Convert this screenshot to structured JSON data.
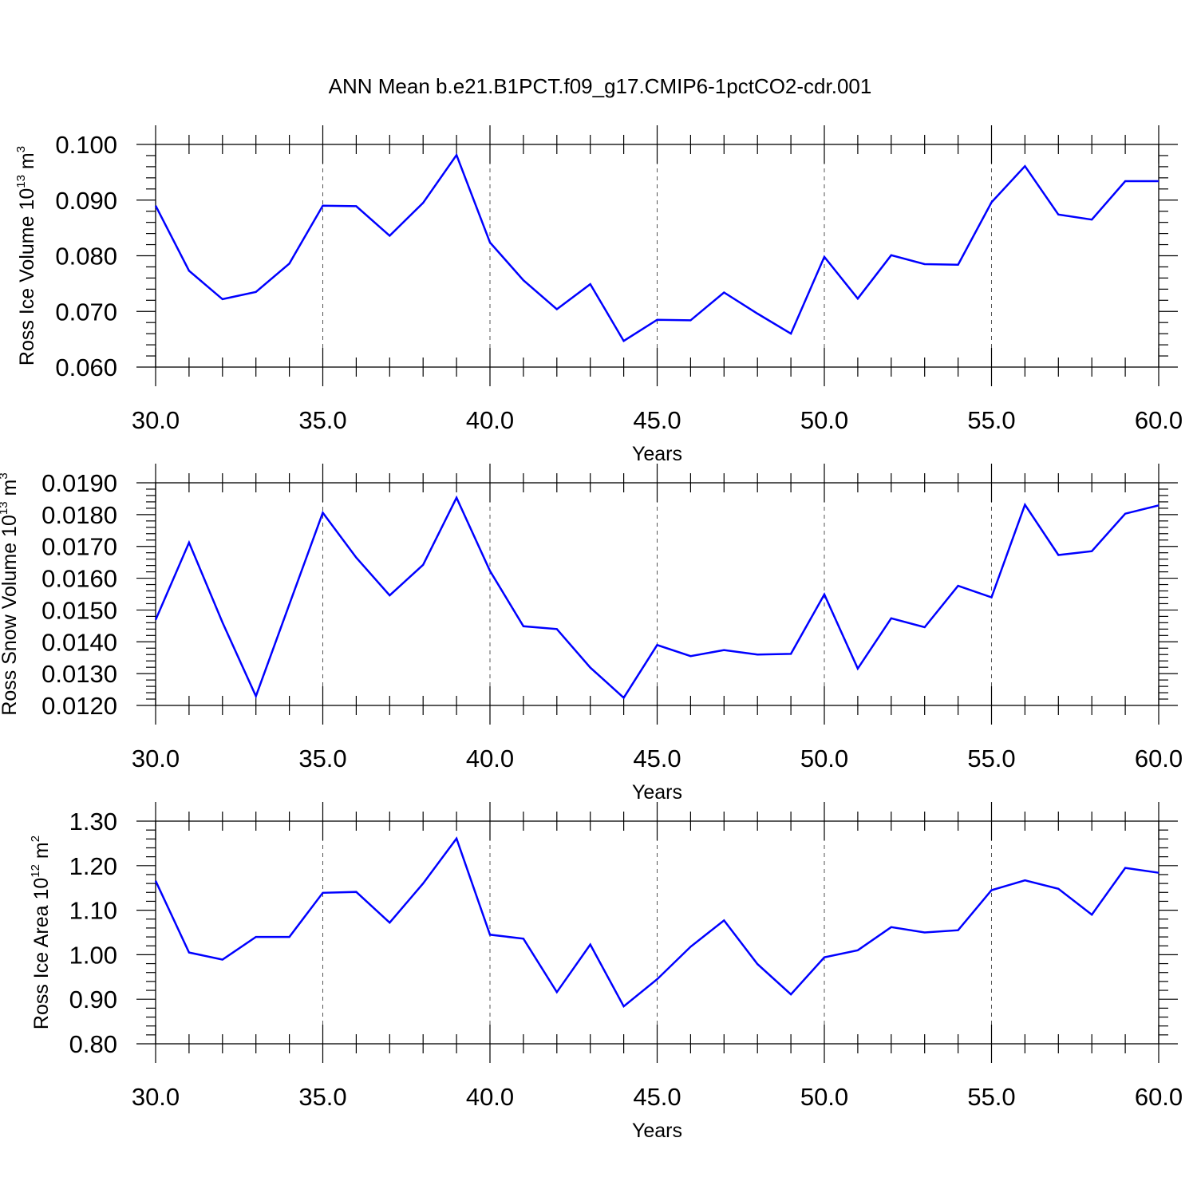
{
  "title": "ANN Mean b.e21.B1PCT.f09_g17.CMIP6-1pctCO2-cdr.001",
  "colors": {
    "line": "#0000ff",
    "axis": "#000000",
    "grid": "#555555"
  },
  "chart_data": [
    {
      "type": "line",
      "ylabel": {
        "prefix": "Ross Ice Volume 10",
        "exp": "13",
        "unit": " m",
        "unit_exp": "3"
      },
      "xlabel": "Years",
      "xlim": [
        30,
        60
      ],
      "ylim": [
        0.06,
        0.1
      ],
      "xticks": [
        "30.0",
        "35.0",
        "40.0",
        "45.0",
        "50.0",
        "55.0",
        "60.0"
      ],
      "yticks": [
        "0.060",
        "0.070",
        "0.080",
        "0.090",
        "0.100"
      ],
      "grid": "vertical dashed",
      "series": [
        {
          "x": [
            30,
            31,
            32,
            33,
            34,
            35,
            36,
            37,
            38,
            39,
            40,
            41,
            42,
            43,
            44,
            45,
            46,
            47,
            48,
            49,
            50,
            51,
            52,
            53,
            54,
            55,
            56,
            57,
            58,
            59,
            60
          ],
          "values": [
            0.089,
            0.0773,
            0.0722,
            0.0735,
            0.0786,
            0.089,
            0.0889,
            0.0836,
            0.0895,
            0.0981,
            0.0824,
            0.0756,
            0.0704,
            0.0749,
            0.0647,
            0.0685,
            0.0684,
            0.0734,
            0.0696,
            0.066,
            0.0798,
            0.0723,
            0.0801,
            0.0785,
            0.0784,
            0.0896,
            0.0961,
            0.0874,
            0.0865,
            0.0934,
            0.0934
          ]
        }
      ]
    },
    {
      "type": "line",
      "ylabel": {
        "prefix": "Ross Snow Volume 10",
        "exp": "13",
        "unit": " m",
        "unit_exp": "3"
      },
      "xlabel": "Years",
      "xlim": [
        30,
        60
      ],
      "ylim": [
        0.012,
        0.019
      ],
      "xticks": [
        "30.0",
        "35.0",
        "40.0",
        "45.0",
        "50.0",
        "55.0",
        "60.0"
      ],
      "yticks": [
        "0.0120",
        "0.0130",
        "0.0140",
        "0.0150",
        "0.0160",
        "0.0170",
        "0.0180",
        "0.0190"
      ],
      "grid": "vertical dashed",
      "series": [
        {
          "x": [
            30,
            31,
            32,
            33,
            34,
            35,
            36,
            37,
            38,
            39,
            40,
            41,
            42,
            43,
            44,
            45,
            46,
            47,
            48,
            49,
            50,
            51,
            52,
            53,
            54,
            55,
            56,
            57,
            58,
            59,
            60
          ],
          "values": [
            0.01469,
            0.01712,
            0.01461,
            0.01229,
            0.01518,
            0.01806,
            0.01665,
            0.01546,
            0.01642,
            0.01853,
            0.01623,
            0.01449,
            0.0144,
            0.01319,
            0.01224,
            0.0139,
            0.01355,
            0.01374,
            0.0136,
            0.01362,
            0.01549,
            0.01316,
            0.01474,
            0.01446,
            0.01576,
            0.0154,
            0.01831,
            0.01673,
            0.01685,
            0.01803,
            0.01829
          ]
        }
      ]
    },
    {
      "type": "line",
      "ylabel": {
        "prefix": "Ross Ice Area 10",
        "exp": "12",
        "unit": " m",
        "unit_exp": "2"
      },
      "xlabel": "Years",
      "xlim": [
        30,
        60
      ],
      "ylim": [
        0.8,
        1.3
      ],
      "xticks": [
        "30.0",
        "35.0",
        "40.0",
        "45.0",
        "50.0",
        "55.0",
        "60.0"
      ],
      "yticks": [
        "0.80",
        "0.90",
        "1.00",
        "1.10",
        "1.20",
        "1.30"
      ],
      "grid": "vertical dashed",
      "series": [
        {
          "x": [
            30,
            31,
            32,
            33,
            34,
            35,
            36,
            37,
            38,
            39,
            40,
            41,
            42,
            43,
            44,
            45,
            46,
            47,
            48,
            49,
            50,
            51,
            52,
            53,
            54,
            55,
            56,
            57,
            58,
            59,
            60
          ],
          "values": [
            1.166,
            1.005,
            0.989,
            1.04,
            1.04,
            1.139,
            1.141,
            1.072,
            1.16,
            1.261,
            1.045,
            1.036,
            0.916,
            1.023,
            0.884,
            0.945,
            1.018,
            1.077,
            0.979,
            0.911,
            0.994,
            1.01,
            1.062,
            1.05,
            1.055,
            1.145,
            1.167,
            1.148,
            1.09,
            1.195,
            1.184
          ]
        }
      ]
    }
  ]
}
